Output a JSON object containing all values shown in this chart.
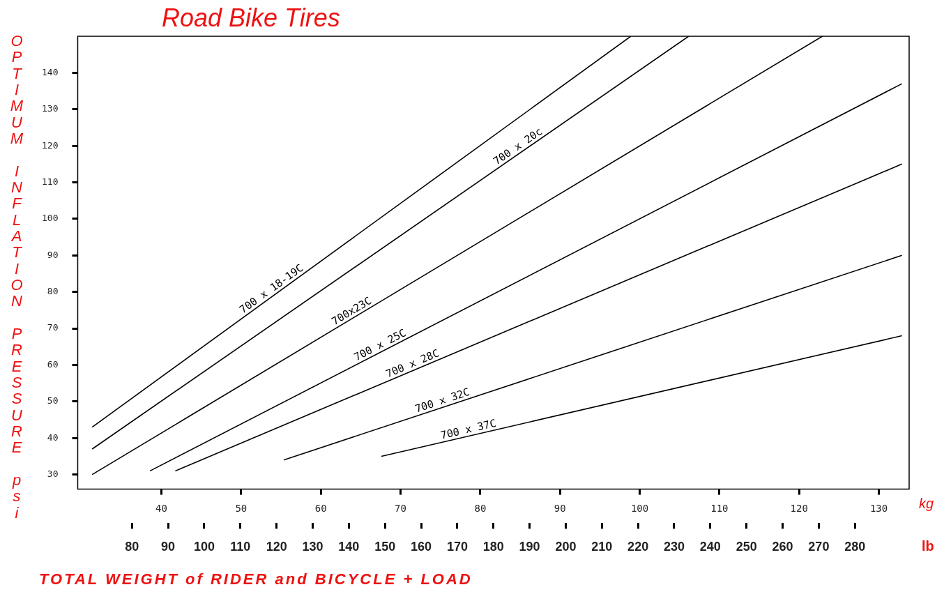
{
  "chart_data": {
    "type": "line",
    "title": "Road Bike Tires",
    "xlabel": "TOTAL WEIGHT of RIDER and BICYCLE + LOAD",
    "ylabel": "OPTIMUM INFLATION PRESSURE psi",
    "x2label": "kg",
    "annotations": [
      "lb"
    ],
    "xlim": [
      65,
      295
    ],
    "xticks": [
      80,
      90,
      100,
      110,
      120,
      130,
      140,
      150,
      160,
      170,
      180,
      190,
      200,
      210,
      220,
      230,
      240,
      250,
      260,
      270,
      280
    ],
    "x2lim": [
      29.5,
      133.8
    ],
    "x2ticks": [
      40,
      50,
      60,
      70,
      80,
      90,
      100,
      110,
      120,
      130
    ],
    "ylim": [
      26,
      150
    ],
    "yticks": [
      30,
      40,
      50,
      60,
      70,
      80,
      90,
      100,
      110,
      120,
      130,
      140
    ],
    "grid": false,
    "legend": false,
    "marker": "none",
    "line_style": "solid",
    "series": [
      {
        "name": "700 x 18-19C",
        "color": "#000000",
        "x": [
          69,
          218
        ],
        "values": [
          43,
          150
        ]
      },
      {
        "name": "700 x 20c",
        "color": "#000000",
        "x": [
          69,
          234
        ],
        "values": [
          37,
          150
        ]
      },
      {
        "name": "700x23C",
        "color": "#000000",
        "x": [
          69,
          271
        ],
        "values": [
          30,
          150
        ]
      },
      {
        "name": "700 x 25C",
        "color": "#000000",
        "x": [
          85,
          293
        ],
        "values": [
          31,
          137
        ]
      },
      {
        "name": "700 x 28C",
        "color": "#000000",
        "x": [
          92,
          293
        ],
        "values": [
          31,
          115
        ]
      },
      {
        "name": "700 x 32C",
        "color": "#000000",
        "x": [
          122,
          293
        ],
        "values": [
          34,
          90
        ]
      },
      {
        "name": "700 x 37C",
        "color": "#000000",
        "x": [
          149,
          293
        ],
        "values": [
          35,
          68
        ]
      }
    ]
  }
}
